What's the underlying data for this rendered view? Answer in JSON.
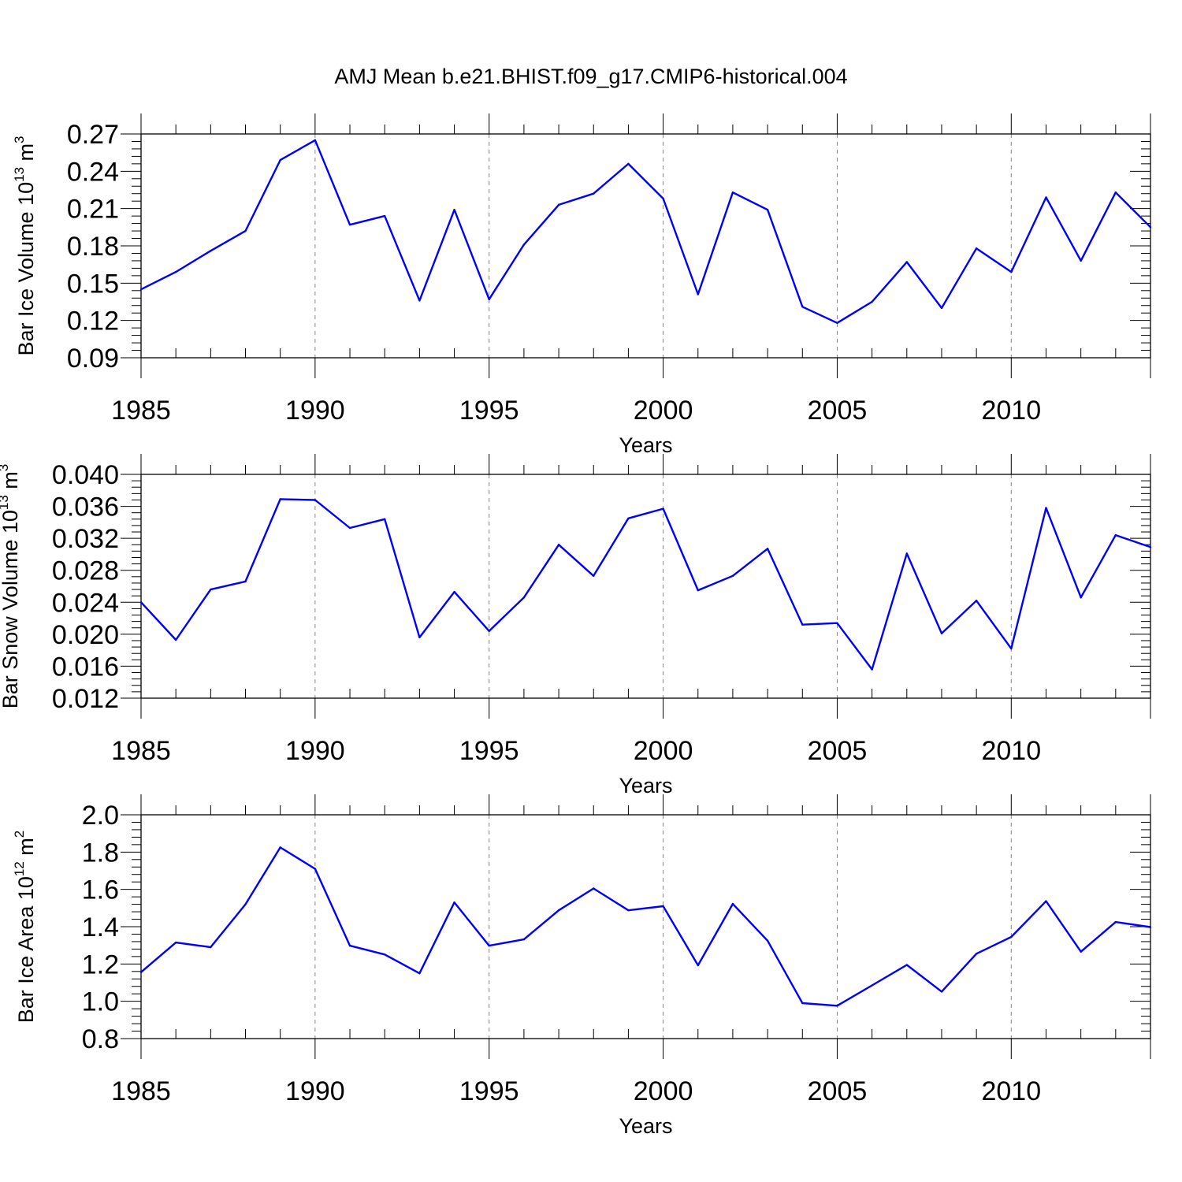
{
  "colors": {
    "line": "#0000ff",
    "axis": "#000000",
    "grid": "#888888",
    "background": "#ffffff"
  },
  "chart_data": [
    {
      "type": "line",
      "title": "AMJ Mean b.e21.BHIST.f09_g17.CMIP6-historical.004",
      "ylabel": "Bar Ice Volume 10",
      "ylabel_exp": "13",
      "ylabel_unit": " m",
      "ylabel_unit_exp": "3",
      "xlabel": "Years",
      "xlim": [
        1985,
        2014
      ],
      "ylim": [
        0.09,
        0.27
      ],
      "yticks": [
        0.09,
        0.12,
        0.15,
        0.18,
        0.21,
        0.24,
        0.27
      ],
      "ytick_labels": [
        "0.09",
        "0.12",
        "0.15",
        "0.18",
        "0.21",
        "0.24",
        "0.27"
      ],
      "xticks": [
        1985,
        1990,
        1995,
        2000,
        2005,
        2010
      ],
      "xtick_labels": [
        "1985",
        "1990",
        "1995",
        "2000",
        "2005",
        "2010"
      ],
      "grid": "vertical-dashed",
      "x": [
        1985,
        1986,
        1987,
        1988,
        1989,
        1990,
        1991,
        1992,
        1993,
        1994,
        1995,
        1996,
        1997,
        1998,
        1999,
        2000,
        2001,
        2002,
        2003,
        2004,
        2005,
        2006,
        2007,
        2008,
        2009,
        2010,
        2011,
        2012,
        2013,
        2014
      ],
      "series": [
        {
          "name": "Bar Ice Volume",
          "values": [
            0.145,
            0.159,
            0.176,
            0.192,
            0.249,
            0.265,
            0.197,
            0.204,
            0.136,
            0.209,
            0.137,
            0.181,
            0.213,
            0.222,
            0.246,
            0.218,
            0.141,
            0.223,
            0.209,
            0.131,
            0.118,
            0.135,
            0.167,
            0.13,
            0.178,
            0.159,
            0.219,
            0.168,
            0.223,
            0.195
          ]
        }
      ]
    },
    {
      "type": "line",
      "ylabel": "Bar Snow Volume 10",
      "ylabel_exp": "13",
      "ylabel_unit": " m",
      "ylabel_unit_exp": "3",
      "xlabel": "Years",
      "xlim": [
        1985,
        2014
      ],
      "ylim": [
        0.012,
        0.04
      ],
      "yticks": [
        0.012,
        0.016,
        0.02,
        0.024,
        0.028,
        0.032,
        0.036,
        0.04
      ],
      "ytick_labels": [
        "0.012",
        "0.016",
        "0.020",
        "0.024",
        "0.028",
        "0.032",
        "0.036",
        "0.040"
      ],
      "xticks": [
        1985,
        1990,
        1995,
        2000,
        2005,
        2010
      ],
      "xtick_labels": [
        "1985",
        "1990",
        "1995",
        "2000",
        "2005",
        "2010"
      ],
      "grid": "vertical-dashed",
      "x": [
        1985,
        1986,
        1987,
        1988,
        1989,
        1990,
        1991,
        1992,
        1993,
        1994,
        1995,
        1996,
        1997,
        1998,
        1999,
        2000,
        2001,
        2002,
        2003,
        2004,
        2005,
        2006,
        2007,
        2008,
        2009,
        2010,
        2011,
        2012,
        2013,
        2014
      ],
      "series": [
        {
          "name": "Bar Snow Volume",
          "values": [
            0.024,
            0.0193,
            0.0256,
            0.0266,
            0.0369,
            0.0368,
            0.0333,
            0.0344,
            0.0196,
            0.0253,
            0.0204,
            0.0246,
            0.0312,
            0.0273,
            0.0345,
            0.0357,
            0.0255,
            0.0273,
            0.0307,
            0.0212,
            0.0214,
            0.0156,
            0.0301,
            0.0201,
            0.0242,
            0.0182,
            0.0358,
            0.0246,
            0.0324,
            0.0309
          ]
        }
      ]
    },
    {
      "type": "line",
      "ylabel": "Bar Ice Area 10",
      "ylabel_exp": "12",
      "ylabel_unit": " m",
      "ylabel_unit_exp": "2",
      "xlabel": "Years",
      "xlim": [
        1985,
        2014
      ],
      "ylim": [
        0.8,
        2.0
      ],
      "yticks": [
        0.8,
        1.0,
        1.2,
        1.4,
        1.6,
        1.8,
        2.0
      ],
      "ytick_labels": [
        "0.8",
        "1.0",
        "1.2",
        "1.4",
        "1.6",
        "1.8",
        "2.0"
      ],
      "xticks": [
        1985,
        1990,
        1995,
        2000,
        2005,
        2010
      ],
      "xtick_labels": [
        "1985",
        "1990",
        "1995",
        "2000",
        "2005",
        "2010"
      ],
      "grid": "vertical-dashed",
      "x": [
        1985,
        1986,
        1987,
        1988,
        1989,
        1990,
        1991,
        1992,
        1993,
        1994,
        1995,
        1996,
        1997,
        1998,
        1999,
        2000,
        2001,
        2002,
        2003,
        2004,
        2005,
        2006,
        2007,
        2008,
        2009,
        2010,
        2011,
        2012,
        2013,
        2014
      ],
      "series": [
        {
          "name": "Bar Ice Area",
          "values": [
            1.156,
            1.315,
            1.29,
            1.52,
            1.825,
            1.71,
            1.298,
            1.251,
            1.15,
            1.53,
            1.298,
            1.332,
            1.488,
            1.605,
            1.488,
            1.51,
            1.193,
            1.522,
            1.325,
            0.99,
            0.976,
            1.085,
            1.195,
            1.052,
            1.255,
            1.345,
            1.537,
            1.266,
            1.425,
            1.398
          ]
        }
      ]
    }
  ]
}
